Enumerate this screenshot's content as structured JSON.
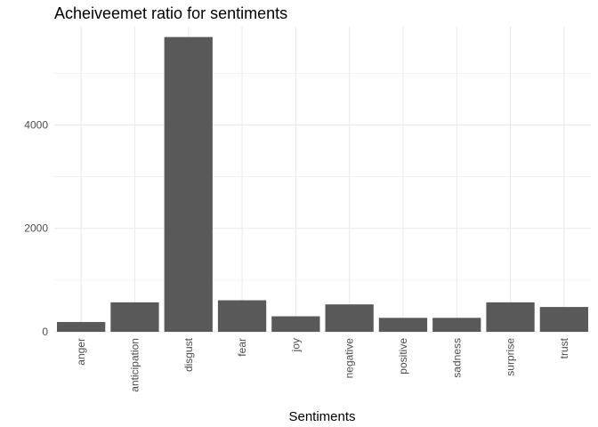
{
  "chart_data": {
    "type": "bar",
    "title": "Acheiveemet ratio for sentiments",
    "xlabel": "Sentiments",
    "ylabel": "",
    "categories": [
      "anger",
      "anticipation",
      "disgust",
      "fear",
      "joy",
      "negative",
      "positive",
      "sadness",
      "surprise",
      "trust"
    ],
    "values": [
      190,
      570,
      5700,
      610,
      300,
      530,
      270,
      270,
      570,
      480
    ],
    "ylim": [
      0,
      5900
    ],
    "yticks": [
      0,
      2000,
      4000
    ],
    "grid": true,
    "bar_color": "#595959",
    "grid_color": "#ebebeb"
  }
}
